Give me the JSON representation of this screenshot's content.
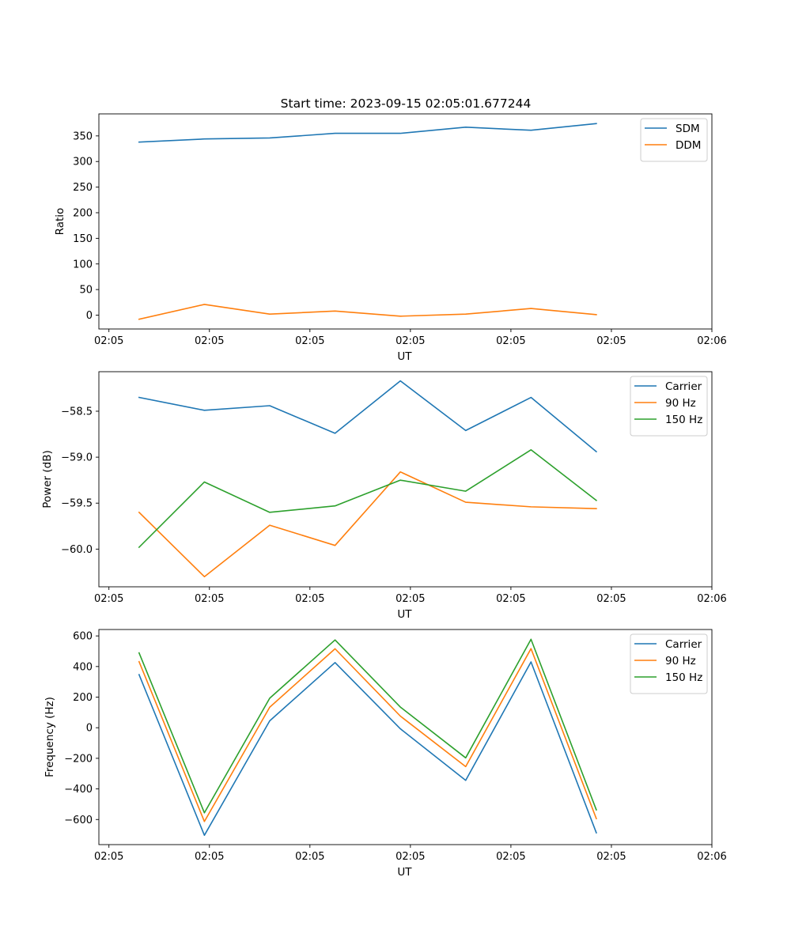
{
  "figure_title": "Start time: 2023-09-15 02:05:01.677244",
  "colors": {
    "blue": "#1f77b4",
    "orange": "#ff7f0e",
    "green": "#2ca02c",
    "axes": "#000000",
    "legend_border": "#cccccc",
    "background": "#ffffff"
  },
  "chart_data": [
    {
      "type": "line",
      "title": "Start time: 2023-09-15 02:05:01.677244",
      "xlabel": "UT",
      "ylabel": "Ratio",
      "x": [
        0.3,
        0.95,
        1.6,
        2.25,
        2.9,
        3.55,
        4.2,
        4.85
      ],
      "xlim": [
        -0.1,
        6.0
      ],
      "xticks": [
        0,
        1,
        2,
        3,
        4,
        5,
        6
      ],
      "xtick_labels": [
        "02:05",
        "02:05",
        "02:05",
        "02:05",
        "02:05",
        "02:05",
        "02:06"
      ],
      "ylim": [
        -27,
        393
      ],
      "yticks": [
        0,
        50,
        100,
        150,
        200,
        250,
        300,
        350
      ],
      "ytick_labels": [
        "0",
        "50",
        "100",
        "150",
        "200",
        "250",
        "300",
        "350"
      ],
      "legend_position": "top-right",
      "series": [
        {
          "name": "SDM",
          "color": "#1f77b4",
          "values": [
            338,
            344,
            346,
            355,
            355,
            367,
            361,
            374
          ]
        },
        {
          "name": "DDM",
          "color": "#ff7f0e",
          "values": [
            -8,
            21,
            2,
            8,
            -2,
            2,
            13,
            1
          ]
        }
      ]
    },
    {
      "type": "line",
      "title": "",
      "xlabel": "UT",
      "ylabel": "Power (dB)",
      "x": [
        0.3,
        0.95,
        1.6,
        2.25,
        2.9,
        3.55,
        4.2,
        4.85
      ],
      "xlim": [
        -0.1,
        6.0
      ],
      "xticks": [
        0,
        1,
        2,
        3,
        4,
        5,
        6
      ],
      "xtick_labels": [
        "02:05",
        "02:05",
        "02:05",
        "02:05",
        "02:05",
        "02:05",
        "02:06"
      ],
      "ylim": [
        -60.41,
        -58.07
      ],
      "yticks": [
        -60.0,
        -59.5,
        -59.0,
        -58.5
      ],
      "ytick_labels": [
        "−60.0",
        "−59.5",
        "−59.0",
        "−58.5"
      ],
      "legend_position": "top-right",
      "series": [
        {
          "name": "Carrier",
          "color": "#1f77b4",
          "values": [
            -58.35,
            -58.49,
            -58.44,
            -58.74,
            -58.17,
            -58.71,
            -58.35,
            -58.94
          ]
        },
        {
          "name": "90 Hz",
          "color": "#ff7f0e",
          "values": [
            -59.6,
            -60.3,
            -59.74,
            -59.96,
            -59.16,
            -59.49,
            -59.54,
            -59.56
          ]
        },
        {
          "name": "150 Hz",
          "color": "#2ca02c",
          "values": [
            -59.98,
            -59.27,
            -59.6,
            -59.53,
            -59.25,
            -59.37,
            -58.92,
            -59.47
          ]
        }
      ]
    },
    {
      "type": "line",
      "title": "",
      "xlabel": "UT",
      "ylabel": "Frequency (Hz)",
      "x": [
        0.3,
        0.95,
        1.6,
        2.25,
        2.9,
        3.55,
        4.2,
        4.85
      ],
      "xlim": [
        -0.1,
        6.0
      ],
      "xticks": [
        0,
        1,
        2,
        3,
        4,
        5,
        6
      ],
      "xtick_labels": [
        "02:05",
        "02:05",
        "02:05",
        "02:05",
        "02:05",
        "02:05",
        "02:06"
      ],
      "ylim": [
        -764,
        642
      ],
      "yticks": [
        -600,
        -400,
        -200,
        0,
        200,
        400,
        600
      ],
      "ytick_labels": [
        "−600",
        "−400",
        "−200",
        "0",
        "200",
        "400",
        "600"
      ],
      "legend_position": "top-right",
      "series": [
        {
          "name": "Carrier",
          "color": "#1f77b4",
          "values": [
            347,
            -703,
            45,
            426,
            -7,
            -344,
            430,
            -687
          ]
        },
        {
          "name": "90 Hz",
          "color": "#ff7f0e",
          "values": [
            432,
            -613,
            134,
            516,
            76,
            -254,
            517,
            -594
          ]
        },
        {
          "name": "150 Hz",
          "color": "#2ca02c",
          "values": [
            489,
            -556,
            193,
            574,
            135,
            -197,
            578,
            -537
          ]
        }
      ]
    }
  ]
}
